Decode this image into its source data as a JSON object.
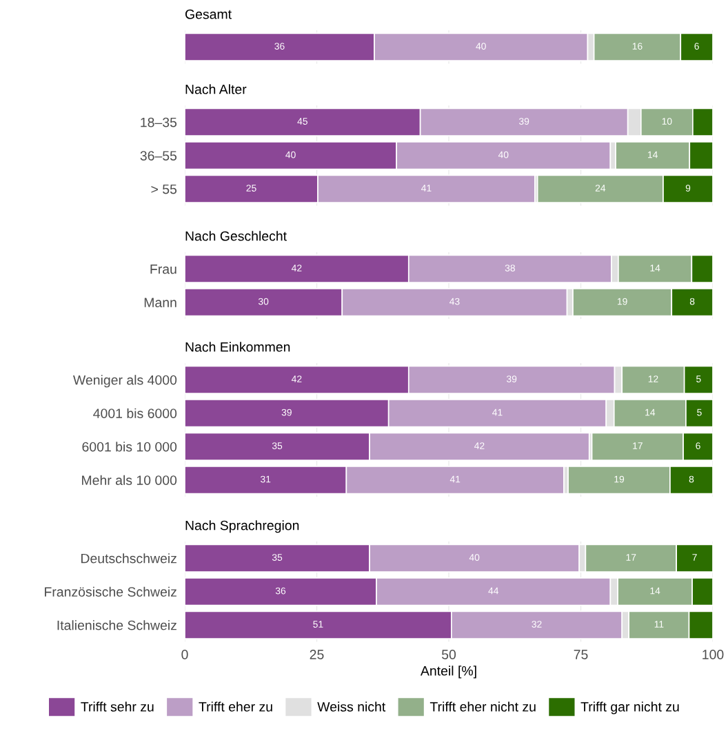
{
  "chart_data": [
    {
      "type": "bar",
      "orientation": "horizontal",
      "stacked": true,
      "title": "Gesamt",
      "categories": [
        null
      ],
      "xlim": [
        0,
        100
      ],
      "xticks": [
        0,
        25,
        50,
        75,
        100
      ],
      "grid": "x",
      "tick_labels": false,
      "series": [
        {
          "color": "#8b4796",
          "values": [
            35.9
          ],
          "value_labels": [
            "36"
          ]
        },
        {
          "color": "#bc9ec6",
          "values": [
            40.4
          ],
          "value_labels": [
            "40"
          ]
        },
        {
          "color": "#e0e0e0",
          "values": [
            1.2
          ],
          "value_labels": [
            null
          ]
        },
        {
          "color": "#93b08a",
          "values": [
            16.4
          ],
          "value_labels": [
            "16"
          ]
        },
        {
          "color": "#2c6e00",
          "values": [
            6.1
          ],
          "value_labels": [
            "6"
          ]
        }
      ]
    },
    {
      "type": "bar",
      "orientation": "horizontal",
      "stacked": true,
      "title": "Nach Alter",
      "categories": [
        "18–35",
        "36–55",
        "> 55"
      ],
      "xlim": [
        0,
        100
      ],
      "xticks": [
        0,
        25,
        50,
        75,
        100
      ],
      "grid": "x",
      "tick_labels": "y",
      "series": [
        {
          "color": "#8b4796",
          "values": [
            44.6,
            40.1,
            25.2
          ],
          "value_labels": [
            "45",
            "40",
            "25"
          ]
        },
        {
          "color": "#bc9ec6",
          "values": [
            39.3,
            40.5,
            41.1
          ],
          "value_labels": [
            "39",
            "40",
            "41"
          ]
        },
        {
          "color": "#e0e0e0",
          "values": [
            2.5,
            1.0,
            0.5
          ],
          "value_labels": [
            null,
            null,
            null
          ]
        },
        {
          "color": "#93b08a",
          "values": [
            9.8,
            14.0,
            23.8
          ],
          "value_labels": [
            "10",
            "14",
            "24"
          ]
        },
        {
          "color": "#2c6e00",
          "values": [
            3.8,
            4.4,
            9.4
          ],
          "value_labels": [
            null,
            null,
            "9"
          ]
        }
      ]
    },
    {
      "type": "bar",
      "orientation": "horizontal",
      "stacked": true,
      "title": "Nach Geschlecht",
      "categories": [
        "Frau",
        "Mann"
      ],
      "xlim": [
        0,
        100
      ],
      "xticks": [
        0,
        25,
        50,
        75,
        100
      ],
      "grid": "x",
      "tick_labels": "y",
      "series": [
        {
          "color": "#8b4796",
          "values": [
            42.4,
            29.8
          ],
          "value_labels": [
            "42",
            "30"
          ]
        },
        {
          "color": "#bc9ec6",
          "values": [
            38.4,
            42.6
          ],
          "value_labels": [
            "38",
            "43"
          ]
        },
        {
          "color": "#e0e0e0",
          "values": [
            1.3,
            1.1
          ],
          "value_labels": [
            null,
            null
          ]
        },
        {
          "color": "#93b08a",
          "values": [
            13.9,
            18.7
          ],
          "value_labels": [
            "14",
            "19"
          ]
        },
        {
          "color": "#2c6e00",
          "values": [
            4.0,
            7.8
          ],
          "value_labels": [
            null,
            "8"
          ]
        }
      ]
    },
    {
      "type": "bar",
      "orientation": "horizontal",
      "stacked": true,
      "title": "Nach Einkommen",
      "categories": [
        "Weniger als 4000",
        "4001 bis 6000",
        "6001 bis 10 000",
        "Mehr als 10 000"
      ],
      "xlim": [
        0,
        100
      ],
      "xticks": [
        0,
        25,
        50,
        75,
        100
      ],
      "grid": "x",
      "tick_labels": "y",
      "series": [
        {
          "color": "#8b4796",
          "values": [
            42.4,
            38.6,
            35.0,
            30.6
          ],
          "value_labels": [
            "42",
            "39",
            "35",
            "31"
          ]
        },
        {
          "color": "#bc9ec6",
          "values": [
            39.0,
            41.2,
            41.6,
            41.2
          ],
          "value_labels": [
            "39",
            "41",
            "42",
            "41"
          ]
        },
        {
          "color": "#e0e0e0",
          "values": [
            1.4,
            1.5,
            0.5,
            0.8
          ],
          "value_labels": [
            null,
            null,
            null,
            null
          ]
        },
        {
          "color": "#93b08a",
          "values": [
            11.8,
            13.6,
            17.3,
            19.3
          ],
          "value_labels": [
            "12",
            "14",
            "17",
            "19"
          ]
        },
        {
          "color": "#2c6e00",
          "values": [
            5.4,
            5.1,
            5.6,
            8.1
          ],
          "value_labels": [
            "5",
            "5",
            "6",
            "8"
          ]
        }
      ]
    },
    {
      "type": "bar",
      "orientation": "horizontal",
      "stacked": true,
      "title": "Nach Sprachregion",
      "categories": [
        "Deutschschweiz",
        "Französische Schweiz",
        "Italienische Schweiz"
      ],
      "xlim": [
        0,
        100
      ],
      "xticks": [
        0,
        25,
        50,
        75,
        100
      ],
      "grid": "x",
      "xlabel": "Anteil [%]",
      "legend": "bottom",
      "series": [
        {
          "name": "Trifft sehr zu",
          "color": "#8b4796",
          "values": [
            35.0,
            36.3,
            50.5
          ],
          "value_labels": [
            "35",
            "36",
            "51"
          ]
        },
        {
          "name": "Trifft eher zu",
          "color": "#bc9ec6",
          "values": [
            39.7,
            44.3,
            32.3
          ],
          "value_labels": [
            "40",
            "44",
            "32"
          ]
        },
        {
          "name": "Weiss nicht",
          "color": "#e0e0e0",
          "values": [
            1.2,
            1.4,
            1.3
          ],
          "value_labels": [
            null,
            null,
            null
          ]
        },
        {
          "name": "Trifft eher nicht zu",
          "color": "#93b08a",
          "values": [
            17.2,
            14.1,
            11.4
          ],
          "value_labels": [
            "17",
            "14",
            "11"
          ]
        },
        {
          "name": "Trifft gar nicht zu",
          "color": "#2c6e00",
          "values": [
            6.9,
            3.9,
            4.5
          ],
          "value_labels": [
            "7",
            null,
            null
          ]
        }
      ]
    }
  ]
}
